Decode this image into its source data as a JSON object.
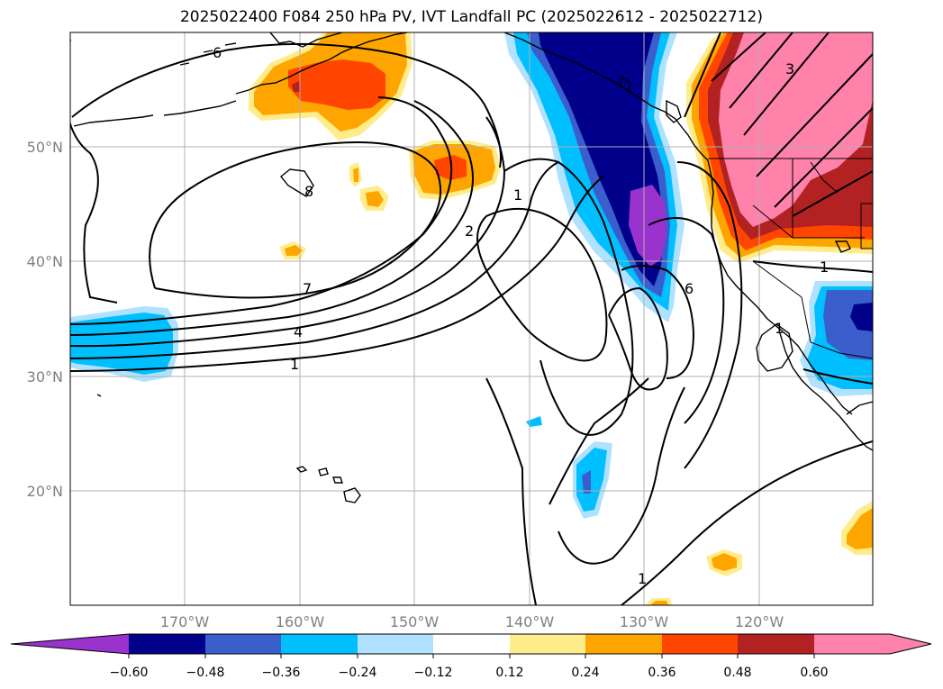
{
  "title": "2025022400 F084 250 hPa PV, IVT Landfall PC (2025022612 - 2025022712)",
  "map": {
    "lon_labels": [
      "170°W",
      "160°W",
      "150°W",
      "140°W",
      "130°W",
      "120°W"
    ],
    "lat_labels": [
      "50°N",
      "40°N",
      "30°N",
      "20°N"
    ],
    "contour_labels": [
      "6",
      "8",
      "7",
      "4",
      "1",
      "2",
      "1",
      "6",
      "3",
      "1",
      "1",
      "1"
    ],
    "grid": true
  },
  "colorbar": {
    "ticks": [
      "−0.60",
      "−0.48",
      "−0.36",
      "−0.24",
      "−0.12",
      "0.12",
      "0.24",
      "0.36",
      "0.48",
      "0.60"
    ],
    "colors": {
      "neg_extend": "#9a32cd",
      "neg5": "#00008b",
      "neg4": "#3a5fcd",
      "neg3": "#00bfff",
      "neg2": "#b0e2ff",
      "zero": "#ffffff",
      "pos1": "#ffec8b",
      "pos2": "#ffa500",
      "pos3": "#ff4500",
      "pos4": "#b22222",
      "pos5": "#ff82ab"
    }
  }
}
